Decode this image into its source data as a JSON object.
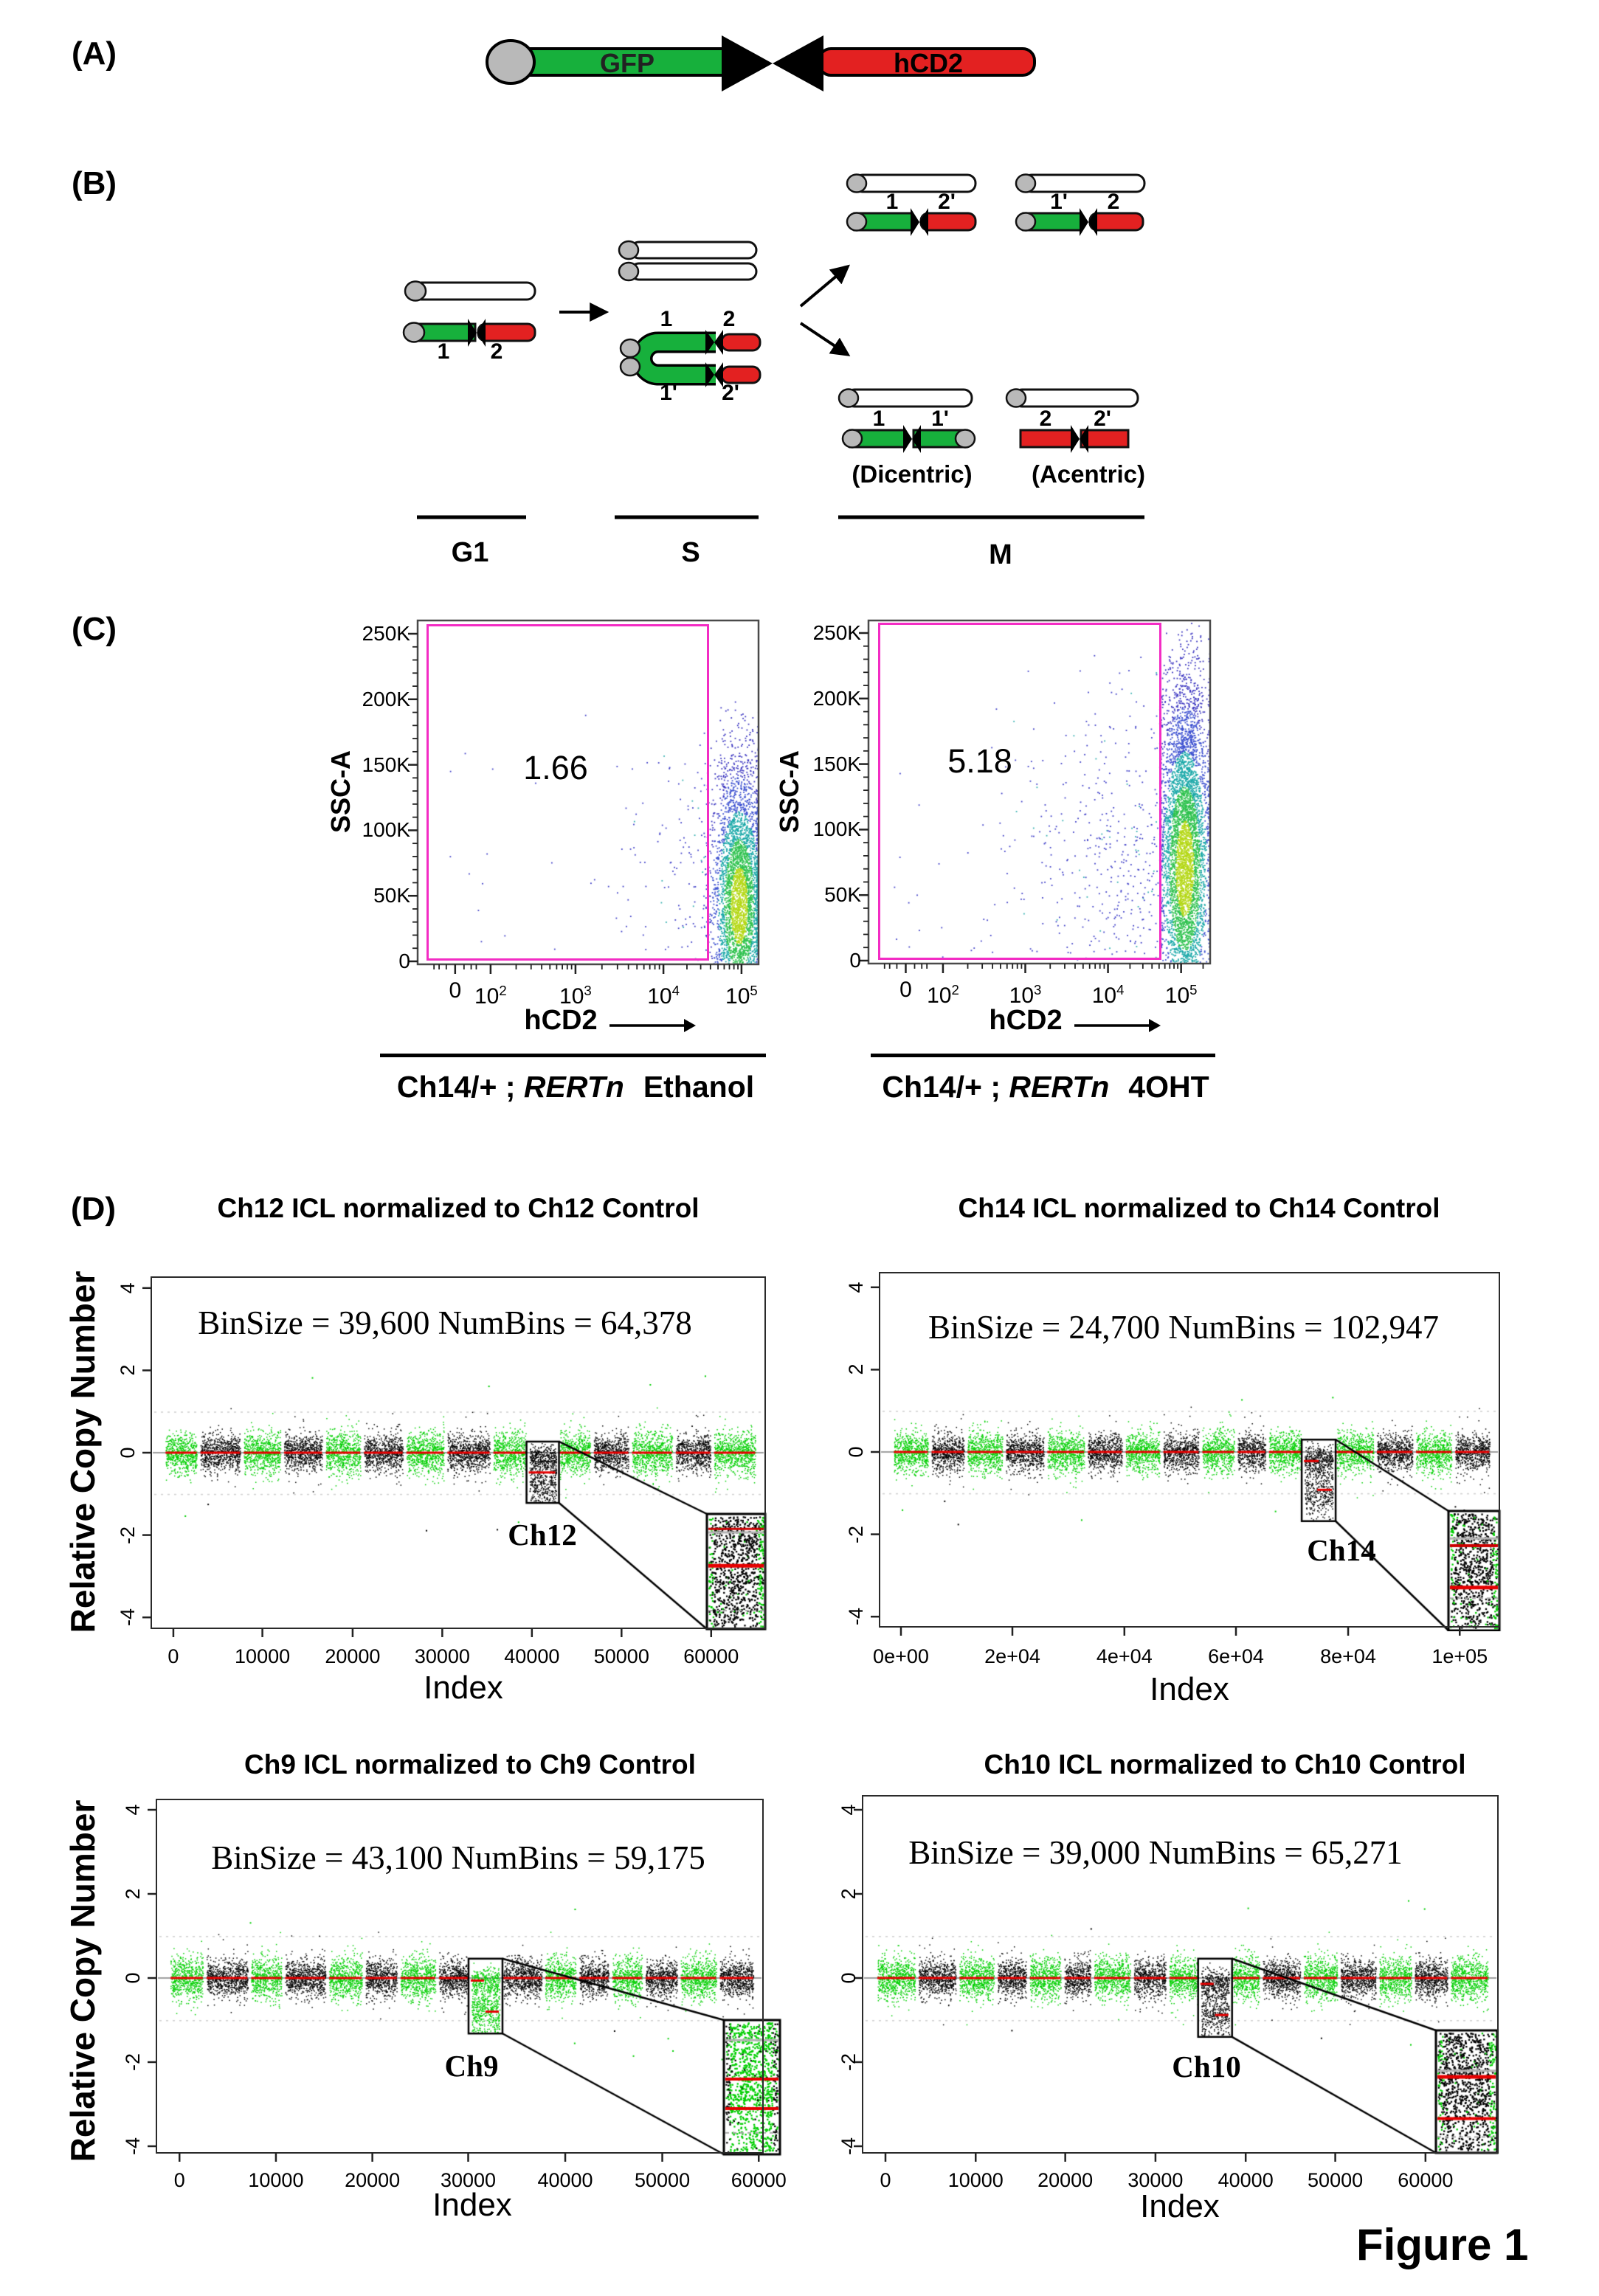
{
  "figure_label": "Figure 1",
  "panels": {
    "a_label": "(A)",
    "b_label": "(B)",
    "c_label": "(C)",
    "d_label": "(D)"
  },
  "panel_a": {
    "gfp": "GFP",
    "hcd2": "hCD2"
  },
  "panel_b": {
    "l1": "1",
    "l2": "2",
    "l1p": "1'",
    "l2p": "2'",
    "phase_g1": "G1",
    "phase_s": "S",
    "phase_m": "M",
    "dicentric": "(Dicentric)",
    "acentric": "(Acentric)"
  },
  "colors": {
    "construct_green": "#17b03c",
    "construct_red": "#e32121",
    "centromere_gray": "#b9b9b9",
    "gate_magenta": "#f32cc4",
    "cnv_green": "#00cf00",
    "cnv_black": "#000000",
    "cnv_red_line": "#e60000",
    "flow_core_yellow": "#b5d818",
    "flow_green": "#2fc24f",
    "flow_teal": "#1aa8a8",
    "flow_blue": "#3c50d0"
  },
  "flow_plots": [
    {
      "gate_value": "1.66",
      "y_label": "SSC-A",
      "x_label": "hCD2",
      "caption_prefix": "Ch14/+ ; ",
      "caption_italic": "RERTn",
      "caption_suffix": "Ethanol",
      "y_ticks": [
        "250K",
        "200K",
        "150K",
        "100K",
        "50K",
        "0"
      ],
      "x_ticks": [
        {
          "t": "0"
        },
        {
          "t": "10",
          "sup": "2"
        },
        {
          "t": "10",
          "sup": "3"
        },
        {
          "t": "10",
          "sup": "4"
        },
        {
          "t": "10",
          "sup": "5"
        }
      ]
    },
    {
      "gate_value": "5.18",
      "y_label": "SSC-A",
      "x_label": "hCD2",
      "caption_prefix": "Ch14/+ ; ",
      "caption_italic": "RERTn",
      "caption_suffix": "4OHT",
      "y_ticks": [
        "250K",
        "200K",
        "150K",
        "100K",
        "50K",
        "0"
      ],
      "x_ticks": [
        {
          "t": "0"
        },
        {
          "t": "10",
          "sup": "2"
        },
        {
          "t": "10",
          "sup": "3"
        },
        {
          "t": "10",
          "sup": "4"
        },
        {
          "t": "10",
          "sup": "5"
        }
      ]
    }
  ],
  "cnv_plots": [
    {
      "title": "Ch12 ICL normalized to Ch12 Control",
      "annotation": "BinSize = 39,600 NumBins = 64,378",
      "chr_label": "Ch12",
      "x_label": "Index",
      "y_label": "Relative Copy Number",
      "y_ticks": [
        "4",
        "2",
        "0",
        "-2",
        "-4"
      ],
      "x_ticks": [
        "0",
        "10000",
        "20000",
        "30000",
        "40000",
        "50000",
        "60000"
      ]
    },
    {
      "title": "Ch14 ICL normalized to Ch14 Control",
      "annotation": "BinSize = 24,700 NumBins = 102,947",
      "chr_label": "Ch14",
      "x_label": "Index",
      "y_label": "Relative Copy Number",
      "y_ticks": [
        "4",
        "2",
        "0",
        "-2",
        "-4"
      ],
      "x_ticks": [
        "0e+00",
        "2e+04",
        "4e+04",
        "6e+04",
        "8e+04",
        "1e+05"
      ]
    },
    {
      "title": "Ch9 ICL normalized to Ch9 Control",
      "annotation": "BinSize = 43,100 NumBins = 59,175",
      "chr_label": "Ch9",
      "x_label": "Index",
      "y_label": "Relative Copy Number",
      "y_ticks": [
        "4",
        "2",
        "0",
        "-2",
        "-4"
      ],
      "x_ticks": [
        "0",
        "10000",
        "20000",
        "30000",
        "40000",
        "50000",
        "60000"
      ]
    },
    {
      "title": "Ch10 ICL normalized to Ch10 Control",
      "annotation": "BinSize = 39,000 NumBins = 65,271",
      "chr_label": "Ch10",
      "x_label": "Index",
      "y_label": "Relative Copy Number",
      "y_ticks": [
        "4",
        "2",
        "0",
        "-2",
        "-4"
      ],
      "x_ticks": [
        "0",
        "10000",
        "20000",
        "30000",
        "40000",
        "50000",
        "60000"
      ]
    }
  ],
  "chart_data": [
    {
      "type": "scatter",
      "subtype": "flow_cytometry_pseudocolor",
      "title": "Ch14/+ ; RERTn Ethanol",
      "xlabel": "hCD2",
      "ylabel": "SSC-A",
      "x_scale": "logicle",
      "x_tick_labels": [
        "0",
        "10^2",
        "10^3",
        "10^4",
        "10^5"
      ],
      "y_tick_labels": [
        "0",
        "50K",
        "100K",
        "150K",
        "200K",
        "250K"
      ],
      "gate_percent": 1.66,
      "legend_position": "none",
      "notes": "dense hCD2-high population just right of gate; sparse blue events inside gate"
    },
    {
      "type": "scatter",
      "subtype": "flow_cytometry_pseudocolor",
      "title": "Ch14/+ ; RERTn 4OHT",
      "xlabel": "hCD2",
      "ylabel": "SSC-A",
      "x_scale": "logicle",
      "x_tick_labels": [
        "0",
        "10^2",
        "10^3",
        "10^4",
        "10^5"
      ],
      "y_tick_labels": [
        "0",
        "50K",
        "100K",
        "150K",
        "200K",
        "250K"
      ],
      "gate_percent": 5.18,
      "legend_position": "none",
      "notes": "more events inside gate than ethanol control"
    },
    {
      "type": "scatter",
      "subtype": "relative_copy_number",
      "title": "Ch12 ICL normalized to Ch12 Control",
      "xlabel": "Index",
      "ylabel": "Relative Copy Number",
      "ylim": [
        -4,
        4
      ],
      "x_ticks": [
        0,
        10000,
        20000,
        30000,
        40000,
        50000,
        60000
      ],
      "bin_size": 39600,
      "num_bins": 64378,
      "highlighted_chromosome": "Ch12",
      "dip_medians": [
        -0.48
      ],
      "baseline_median": 0,
      "gridlines_dotted_at": [
        1,
        -1
      ]
    },
    {
      "type": "scatter",
      "subtype": "relative_copy_number",
      "title": "Ch14 ICL normalized to Ch14 Control",
      "xlabel": "Index",
      "ylabel": "Relative Copy Number",
      "ylim": [
        -4,
        4
      ],
      "x_ticks": [
        0,
        20000,
        40000,
        60000,
        80000,
        100000
      ],
      "bin_size": 24700,
      "num_bins": 102947,
      "highlighted_chromosome": "Ch14",
      "dip_medians": [
        -0.22,
        -0.92
      ],
      "baseline_median": 0,
      "gridlines_dotted_at": [
        1,
        -1
      ]
    },
    {
      "type": "scatter",
      "subtype": "relative_copy_number",
      "title": "Ch9 ICL normalized to Ch9 Control",
      "xlabel": "Index",
      "ylabel": "Relative Copy Number",
      "ylim": [
        -4,
        4
      ],
      "x_ticks": [
        0,
        10000,
        20000,
        30000,
        40000,
        50000,
        60000
      ],
      "bin_size": 43100,
      "num_bins": 59175,
      "highlighted_chromosome": "Ch9",
      "dip_medians": [
        -0.06,
        -0.8
      ],
      "baseline_median": 0,
      "gridlines_dotted_at": [
        1,
        -1
      ]
    },
    {
      "type": "scatter",
      "subtype": "relative_copy_number",
      "title": "Ch10 ICL normalized to Ch10 Control",
      "xlabel": "Index",
      "ylabel": "Relative Copy Number",
      "ylim": [
        -4,
        4
      ],
      "x_ticks": [
        0,
        10000,
        20000,
        30000,
        40000,
        50000,
        60000
      ],
      "bin_size": 39000,
      "num_bins": 65271,
      "highlighted_chromosome": "Ch10",
      "dip_medians": [
        -0.14,
        -0.88
      ],
      "baseline_median": 0,
      "gridlines_dotted_at": [
        1,
        -1
      ]
    }
  ]
}
